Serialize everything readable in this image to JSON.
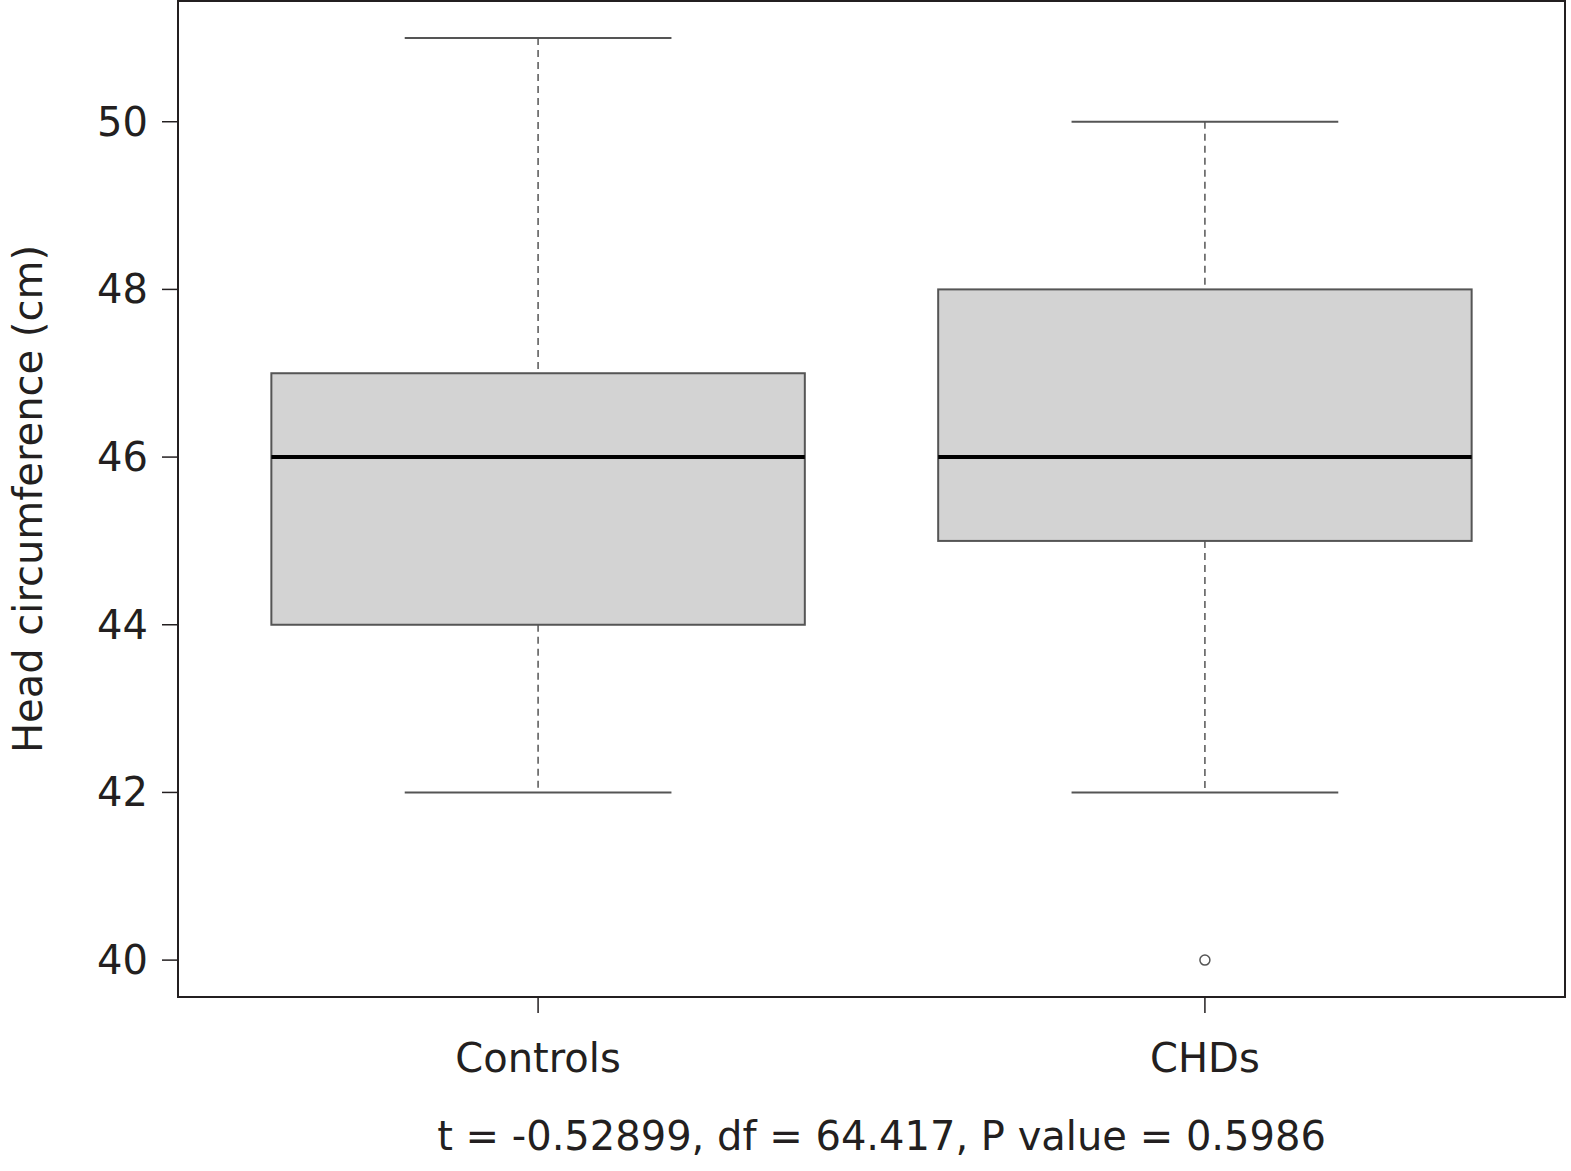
{
  "chart_data": {
    "type": "box",
    "ylabel": "Head circumference (cm)",
    "xlabel": "t = -0.52899, df = 64.417, P value = 0.5986",
    "categories": [
      "Controls",
      "CHDs"
    ],
    "boxes": [
      {
        "min": 42,
        "q1": 44,
        "median": 46,
        "q3": 47,
        "max": 51,
        "outliers": []
      },
      {
        "min": 42,
        "q1": 45,
        "median": 46,
        "q3": 48,
        "max": 50,
        "outliers": [
          40
        ]
      }
    ],
    "color": "#d3d3d3",
    "ylim": [
      39.56,
      51.44
    ],
    "yticks": [
      40,
      42,
      44,
      46,
      48,
      50
    ]
  }
}
